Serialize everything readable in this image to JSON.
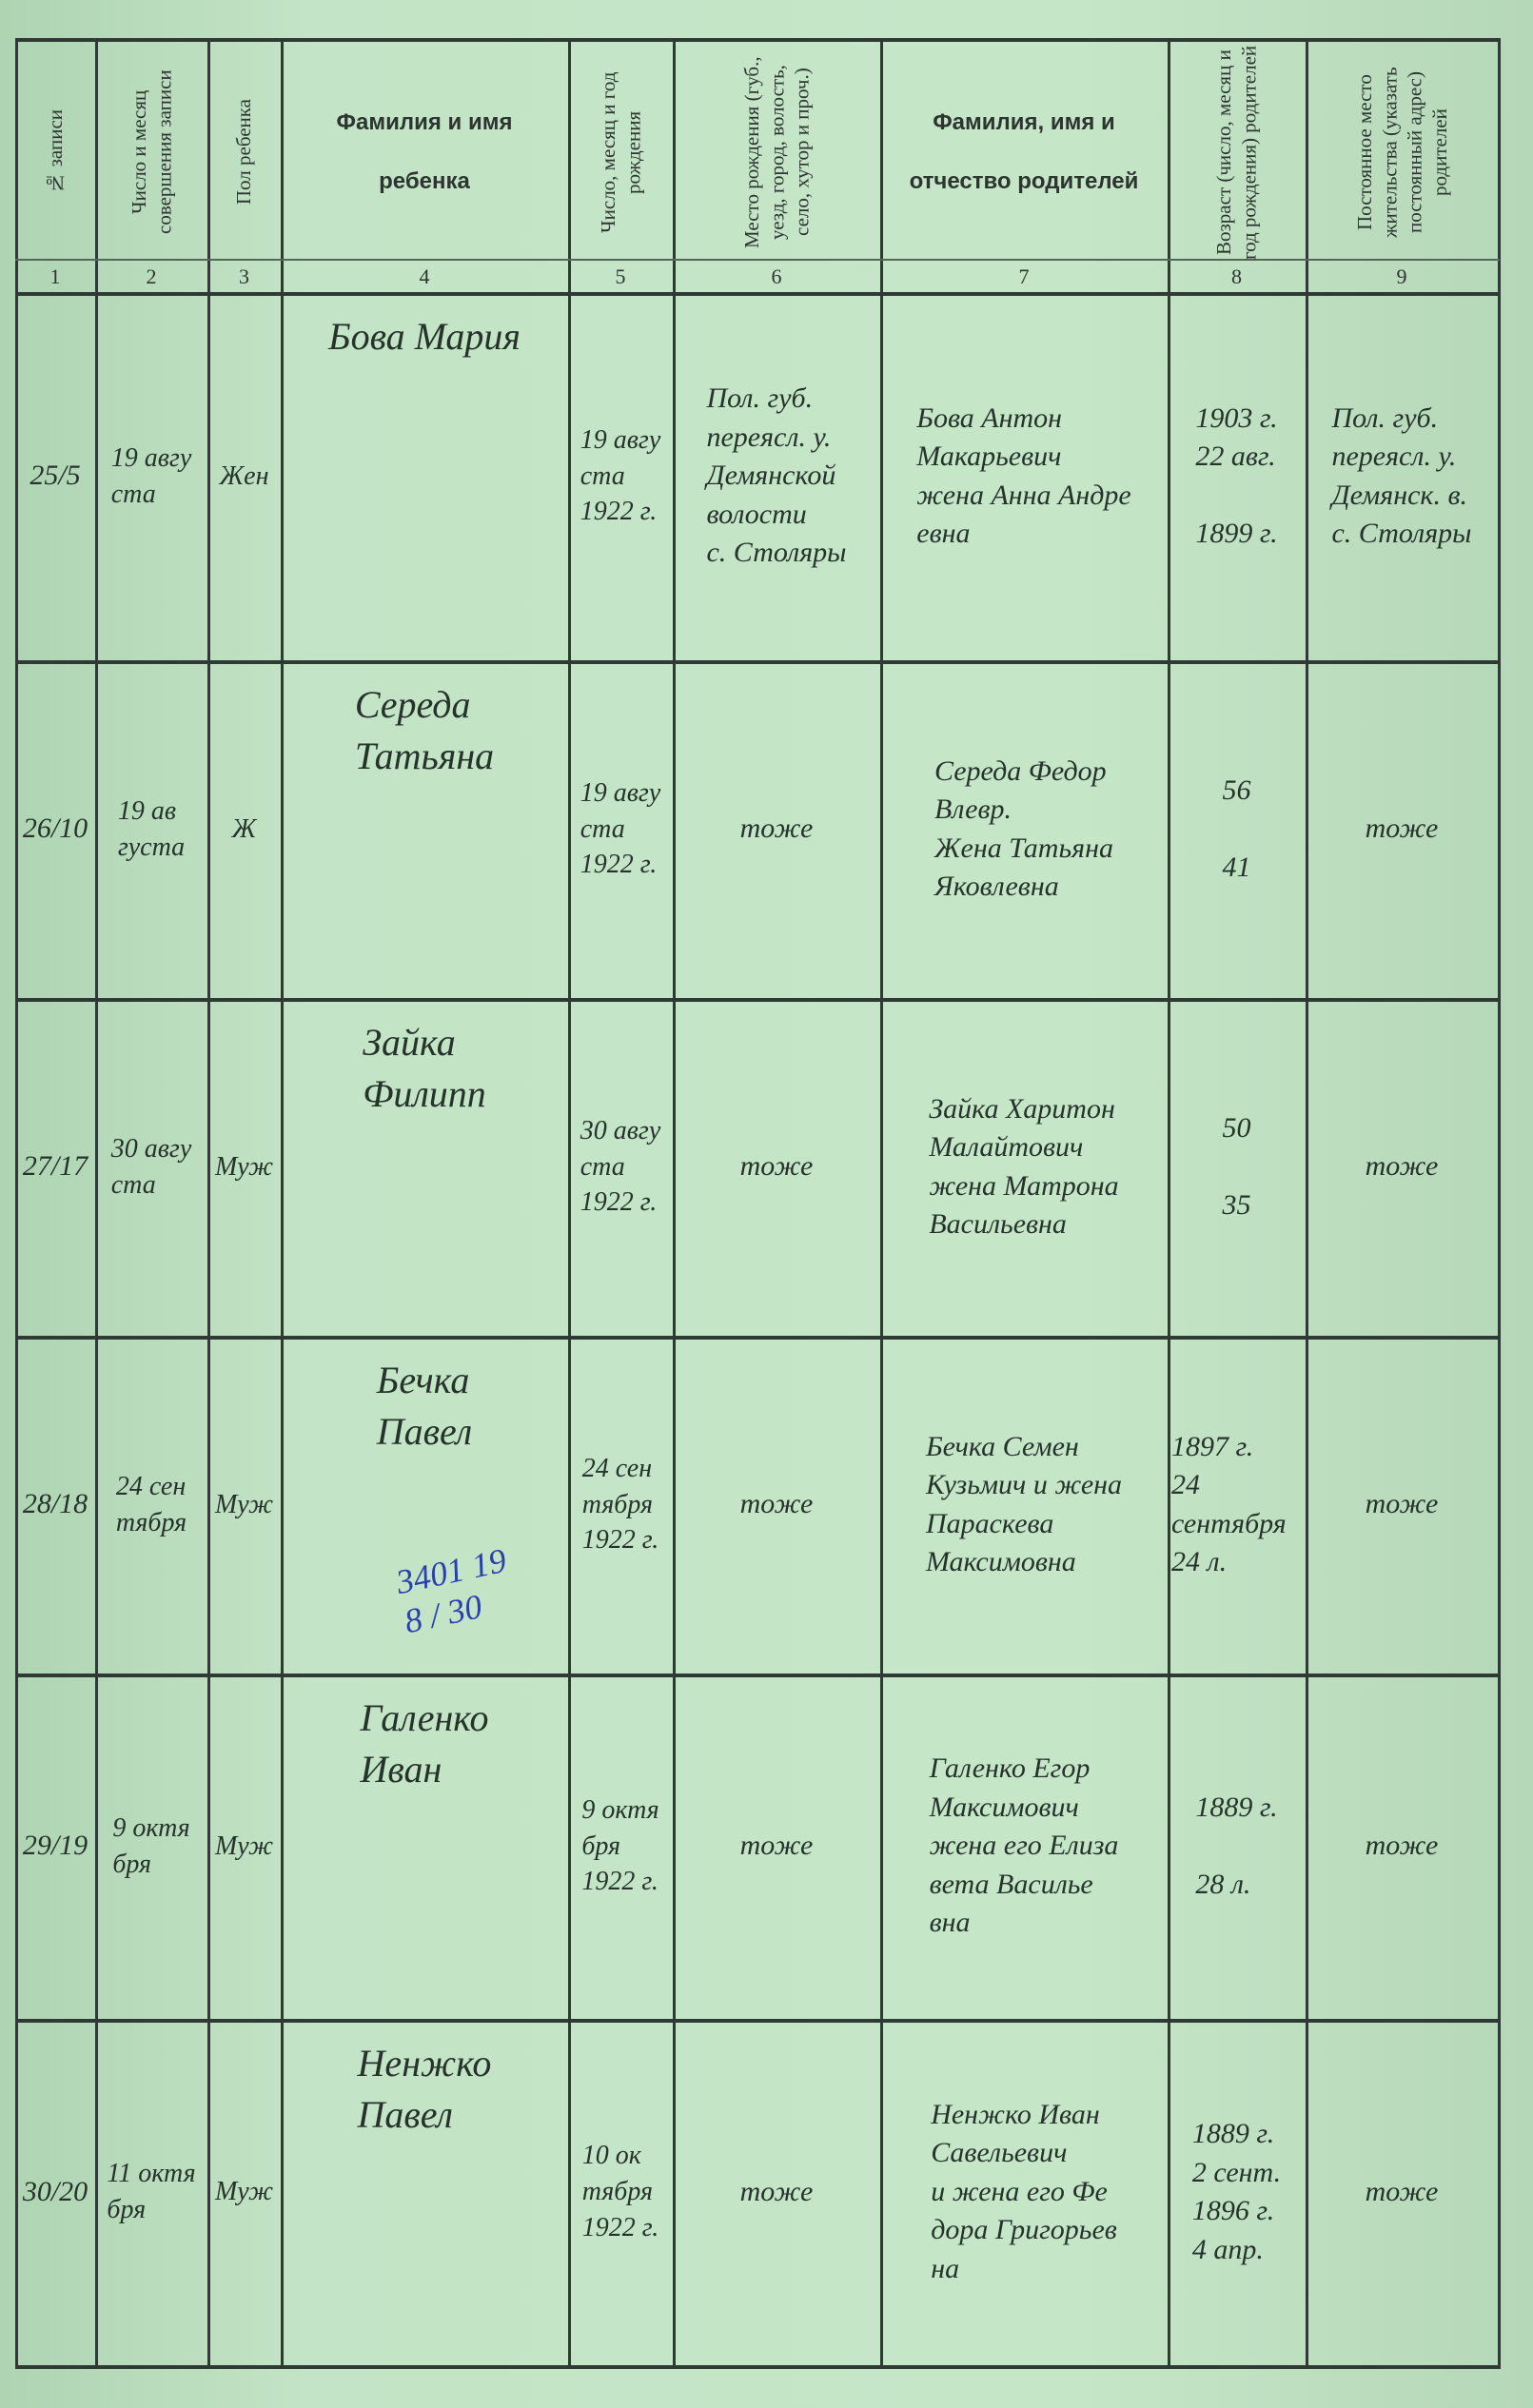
{
  "header": {
    "columns": [
      {
        "no": "1",
        "label": "№ записи"
      },
      {
        "no": "2",
        "label": "Число и месяц совершения записи"
      },
      {
        "no": "3",
        "label": "Пол ребенка"
      },
      {
        "no": "4",
        "label": "Фамилия и имя ребенка"
      },
      {
        "no": "5",
        "label": "Число, месяц и год рождения"
      },
      {
        "no": "6",
        "label": "Место рождения (губ., уезд, город, волость, село, хутор и проч.)"
      },
      {
        "no": "7",
        "label": "Фамилия, имя и отчество родителей"
      },
      {
        "no": "8",
        "label": "Возраст (число, месяц и год рождения) родителей"
      },
      {
        "no": "9",
        "label": "Постоянное место жительства (указать постоянный адрес) родителей"
      }
    ]
  },
  "rows": [
    {
      "no": "25/5",
      "date": "19 авгу\nста",
      "sex": "Жен",
      "name": "Бова Мария",
      "birth": "19 авгу\nста\n1922 г.",
      "place": "Пол. губ.\nпереясл. у.\nДемянской\nволости\nс. Столяры",
      "parents": "Бова Антон\nМакарьевич\nжена Анна Андре\nевна",
      "ages": "1903 г.\n22 авг.\n\n1899 г.",
      "residence": "Пол. губ.\nпереясл. у.\nДемянск. в.\nс. Столяры"
    },
    {
      "no": "26/10",
      "date": "19 ав\nгуста",
      "sex": "Ж",
      "name": "Середа\nТатьяна",
      "birth": "19 авгу\nста\n1922 г.",
      "place": "тоже",
      "parents": "Середа Федор\nВлевр.\nЖена Татьяна\nЯковлевна",
      "ages": "56\n\n41",
      "residence": "тоже"
    },
    {
      "no": "27/17",
      "date": "30 авгу\nста",
      "sex": "Муж",
      "name": "Зайка\nФилипп",
      "birth": "30 авгу\nста\n1922 г.",
      "place": "тоже",
      "parents": "Зайка Харитон\nМалайтович\nжена Матрона\nВасильевна",
      "ages": "50\n\n35",
      "residence": "тоже"
    },
    {
      "no": "28/18",
      "date": "24 сен\nтября",
      "sex": "Муж",
      "name": "Бечка\nПавел",
      "birth": "24 сен\nтября\n1922 г.",
      "place": "тоже",
      "parents": "Бечка Семен\nКузьмич и жена\nПараскева\nМаксимовна",
      "ages": "1897 г.\n24 сентября\n24 л.",
      "residence": "тоже"
    },
    {
      "no": "29/19",
      "date": "9 октя\nбря",
      "sex": "Муж",
      "name": "Галенко\nИван",
      "birth": "9 октя\nбря\n1922 г.",
      "place": "тоже",
      "parents": "Галенко Егор\nМаксимович\nжена его Елиза\nвета Василье\nвна",
      "ages": "1889 г.\n\n28 л.",
      "residence": "тоже"
    },
    {
      "no": "30/20",
      "date": "11 октя\nбря",
      "sex": "Муж",
      "name": "Ненжко\nПавел",
      "birth": "10 ок\nтября\n1922 г.",
      "place": "тоже",
      "parents": "Ненжко Иван\nСавельевич\nи жена его Фе\nдора Григорьев\nна",
      "ages": "1889 г.\n2 сент.\n1896 г.\n4 апр.",
      "residence": "тоже"
    }
  ],
  "annotation": {
    "text": "3401 19\n8 / 30",
    "color": "#2a3fb0"
  },
  "colors": {
    "paper": "#c3e4c6",
    "ink": "#25332b"
  }
}
